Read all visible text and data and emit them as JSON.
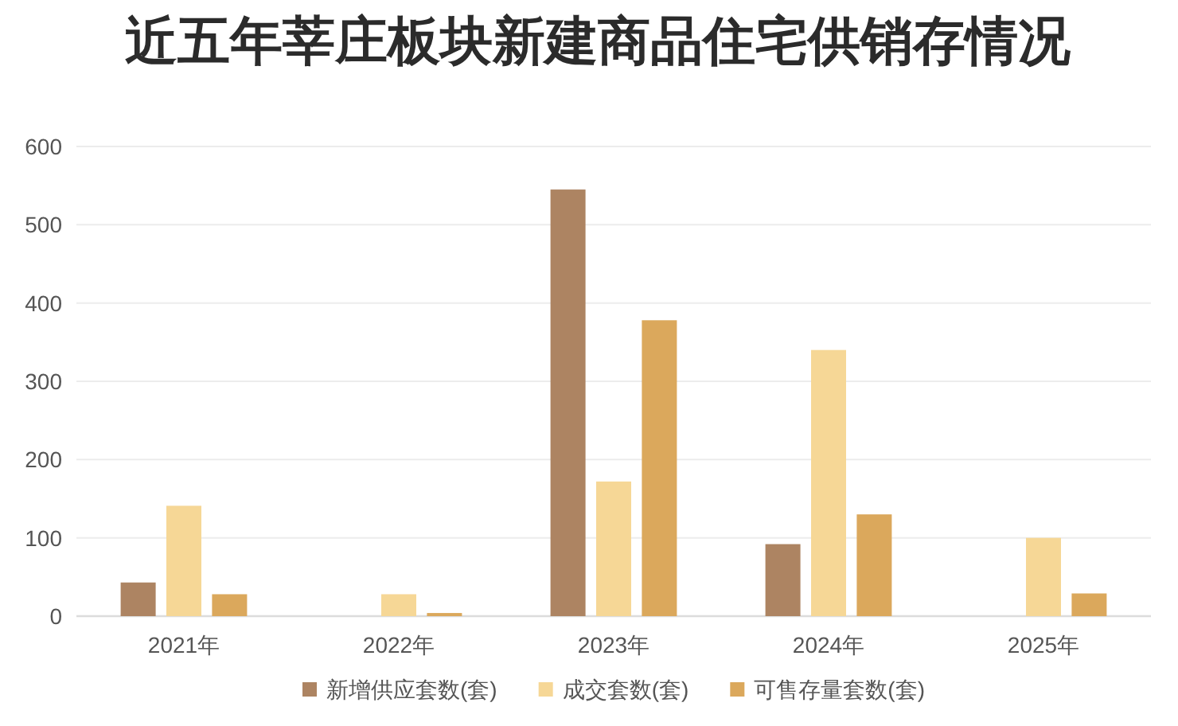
{
  "chart_data": {
    "type": "bar",
    "title": "近五年莘庄板块新建商品住宅供销存情况",
    "categories": [
      "2021年",
      "2022年",
      "2023年",
      "2024年",
      "2025年"
    ],
    "series": [
      {
        "name": "新增供应套数(套)",
        "color": "#ad8462",
        "values": [
          43,
          null,
          545,
          92,
          null
        ]
      },
      {
        "name": "成交套数(套)",
        "color": "#f6d796",
        "values": [
          141,
          28,
          172,
          340,
          100
        ]
      },
      {
        "name": "可售存量套数(套)",
        "color": "#dba85c",
        "values": [
          28,
          4,
          378,
          130,
          29
        ]
      }
    ],
    "ylim": [
      0,
      600
    ],
    "yticks": [
      0,
      100,
      200,
      300,
      400,
      500,
      600
    ],
    "grid": "y",
    "legend": "bottom"
  }
}
